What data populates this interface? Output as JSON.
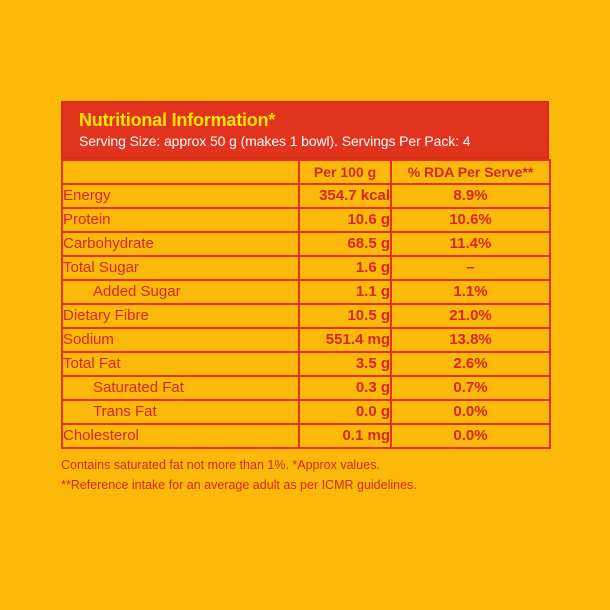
{
  "header": {
    "title": "Nutritional Information*",
    "subtitle": "Serving Size: approx 50 g (makes 1 bowl). Servings Per Pack: 4"
  },
  "columns": [
    "",
    "Per 100 g",
    "% RDA Per Serve**"
  ],
  "rows": [
    {
      "name": "Energy",
      "per100": "354.7 kcal",
      "rda": "8.9%",
      "indent": false
    },
    {
      "name": "Protein",
      "per100": "10.6 g",
      "rda": "10.6%",
      "indent": false
    },
    {
      "name": "Carbohydrate",
      "per100": "68.5 g",
      "rda": "11.4%",
      "indent": false
    },
    {
      "name": "Total Sugar",
      "per100": "1.6 g",
      "rda": "–",
      "indent": false
    },
    {
      "name": "Added Sugar",
      "per100": "1.1 g",
      "rda": "1.1%",
      "indent": true
    },
    {
      "name": "Dietary Fibre",
      "per100": "10.5 g",
      "rda": "21.0%",
      "indent": false
    },
    {
      "name": "Sodium",
      "per100": "551.4 mg",
      "rda": "13.8%",
      "indent": false
    },
    {
      "name": "Total Fat",
      "per100": "3.5 g",
      "rda": "2.6%",
      "indent": false
    },
    {
      "name": "Saturated Fat",
      "per100": "0.3 g",
      "rda": "0.7%",
      "indent": true
    },
    {
      "name": "Trans Fat",
      "per100": "0.0 g",
      "rda": "0.0%",
      "indent": true
    },
    {
      "name": "Cholesterol",
      "per100": "0.1 mg",
      "rda": "0.0%",
      "indent": false
    }
  ],
  "notes": [
    "Contains saturated fat not more than 1%. *Approx values.",
    "**Reference intake for an average adult as per ICMR guidelines."
  ],
  "colors": {
    "background": "#fcb90a",
    "header_red": "#e2341c",
    "title_yellow": "#ffe600",
    "text_red": "#d5291b"
  }
}
